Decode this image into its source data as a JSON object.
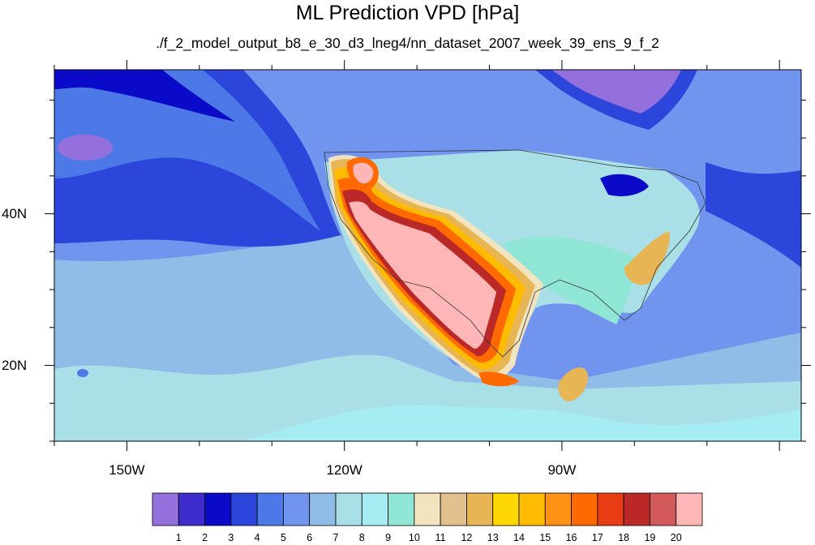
{
  "title": "ML Prediction VPD [hPa]",
  "subtitle": "./f_2_model_output_b8_e_30_d3_lneg4/nn_dataset_2007_week_39_ens_9_f_2",
  "map": {
    "projection": "cylindrical-equidistant",
    "lon_range": [
      -160,
      -57
    ],
    "lat_range": [
      10,
      59
    ],
    "lon_ticks": [
      {
        "value": -150,
        "label": "150W"
      },
      {
        "value": -120,
        "label": "120W"
      },
      {
        "value": -90,
        "label": "90W"
      }
    ],
    "lat_ticks": [
      {
        "value": 40,
        "label": "40N"
      },
      {
        "value": 20,
        "label": "20N"
      }
    ]
  },
  "colorbar": {
    "labels": [
      "1",
      "2",
      "3",
      "4",
      "5",
      "6",
      "7",
      "8",
      "9",
      "10",
      "11",
      "12",
      "13",
      "14",
      "15",
      "16",
      "17",
      "18",
      "19",
      "20"
    ],
    "colors": [
      "#9370db",
      "#3f2ccd",
      "#0a0ac8",
      "#2c46dc",
      "#4d79e8",
      "#7195ee",
      "#90bde8",
      "#a9dfe6",
      "#a5edf3",
      "#8fe6d4",
      "#f3e4c0",
      "#e2c08e",
      "#e8b555",
      "#ffd700",
      "#ffbb00",
      "#ff9214",
      "#ff6a00",
      "#e83c14",
      "#bb2828",
      "#d25a5a",
      "#ffb6b6"
    ]
  }
}
